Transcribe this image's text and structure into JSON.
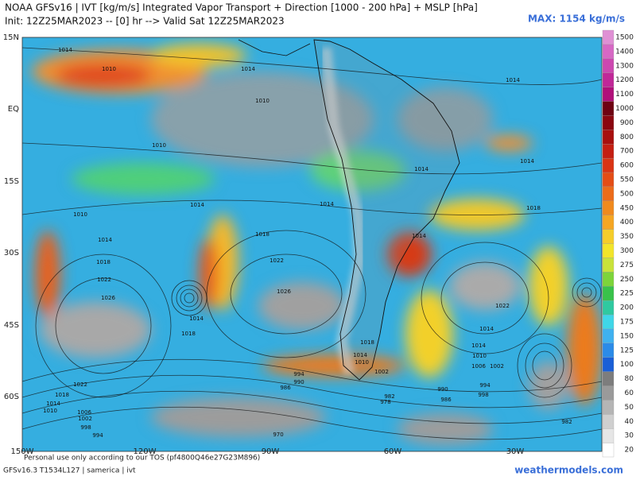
{
  "header": {
    "title": "NOAA GFSv16 | IVT [kg/m/s] Integrated Vapor Transport + Direction [1000 - 200 hPa] + MSLP [hPa]",
    "subtitle": "Init: 12Z25MAR2023 -- [0] hr --> Valid Sat 12Z25MAR2023",
    "max_label": "MAX: 1154 kg/m/s"
  },
  "map": {
    "lat_labels": [
      "15N",
      "EQ",
      "15S",
      "30S",
      "45S",
      "60S"
    ],
    "lon_labels": [
      "150W",
      "120W",
      "90W",
      "60W",
      "30W"
    ],
    "isobar_labels": [
      "1014",
      "1010",
      "1014",
      "1014",
      "1010",
      "1010",
      "1014",
      "1014",
      "1014",
      "1014",
      "1010",
      "1018",
      "1014",
      "1018",
      "1014",
      "1018",
      "1022",
      "1022",
      "1026",
      "1026",
      "1022",
      "1014",
      "1018",
      "1014",
      "1014",
      "1010",
      "1006",
      "1002",
      "1002",
      "994",
      "990",
      "986",
      "990",
      "986",
      "982",
      "978",
      "994",
      "998",
      "1022",
      "1018",
      "1014",
      "1010",
      "1006",
      "1002",
      "998",
      "994",
      "970",
      "982",
      "1014",
      "1010",
      "1018"
    ]
  },
  "colorbar": {
    "values": [
      20,
      30,
      40,
      50,
      60,
      80,
      100,
      125,
      150,
      175,
      200,
      225,
      250,
      275,
      300,
      350,
      400,
      450,
      500,
      550,
      600,
      700,
      800,
      900,
      1000,
      1100,
      1200,
      1300,
      1400,
      1500
    ],
    "colors": [
      "#ffffff",
      "#e6e6e6",
      "#cfcfcf",
      "#b5b5b5",
      "#9a9a9a",
      "#7d7d7d",
      "#1a5fd6",
      "#2b8be8",
      "#3fb1f0",
      "#3fd6e8",
      "#2fc9a0",
      "#39c24a",
      "#7dd43a",
      "#c9e23a",
      "#f2e52a",
      "#f5cd2a",
      "#f5a623",
      "#f08a1e",
      "#ec6c1a",
      "#e44d16",
      "#d93414",
      "#c41f12",
      "#a8100e",
      "#8a0610",
      "#6e0212",
      "#b0107a",
      "#c02898",
      "#cc48b0",
      "#d668c4",
      "#df90d4"
    ]
  },
  "footer": {
    "tos": "Personal use only according to our TOS (pf4800Q46e27G23M896)",
    "model": "GFSv16.3 T1534L127 | samerica | ivt",
    "site": "weathermodels.com"
  }
}
